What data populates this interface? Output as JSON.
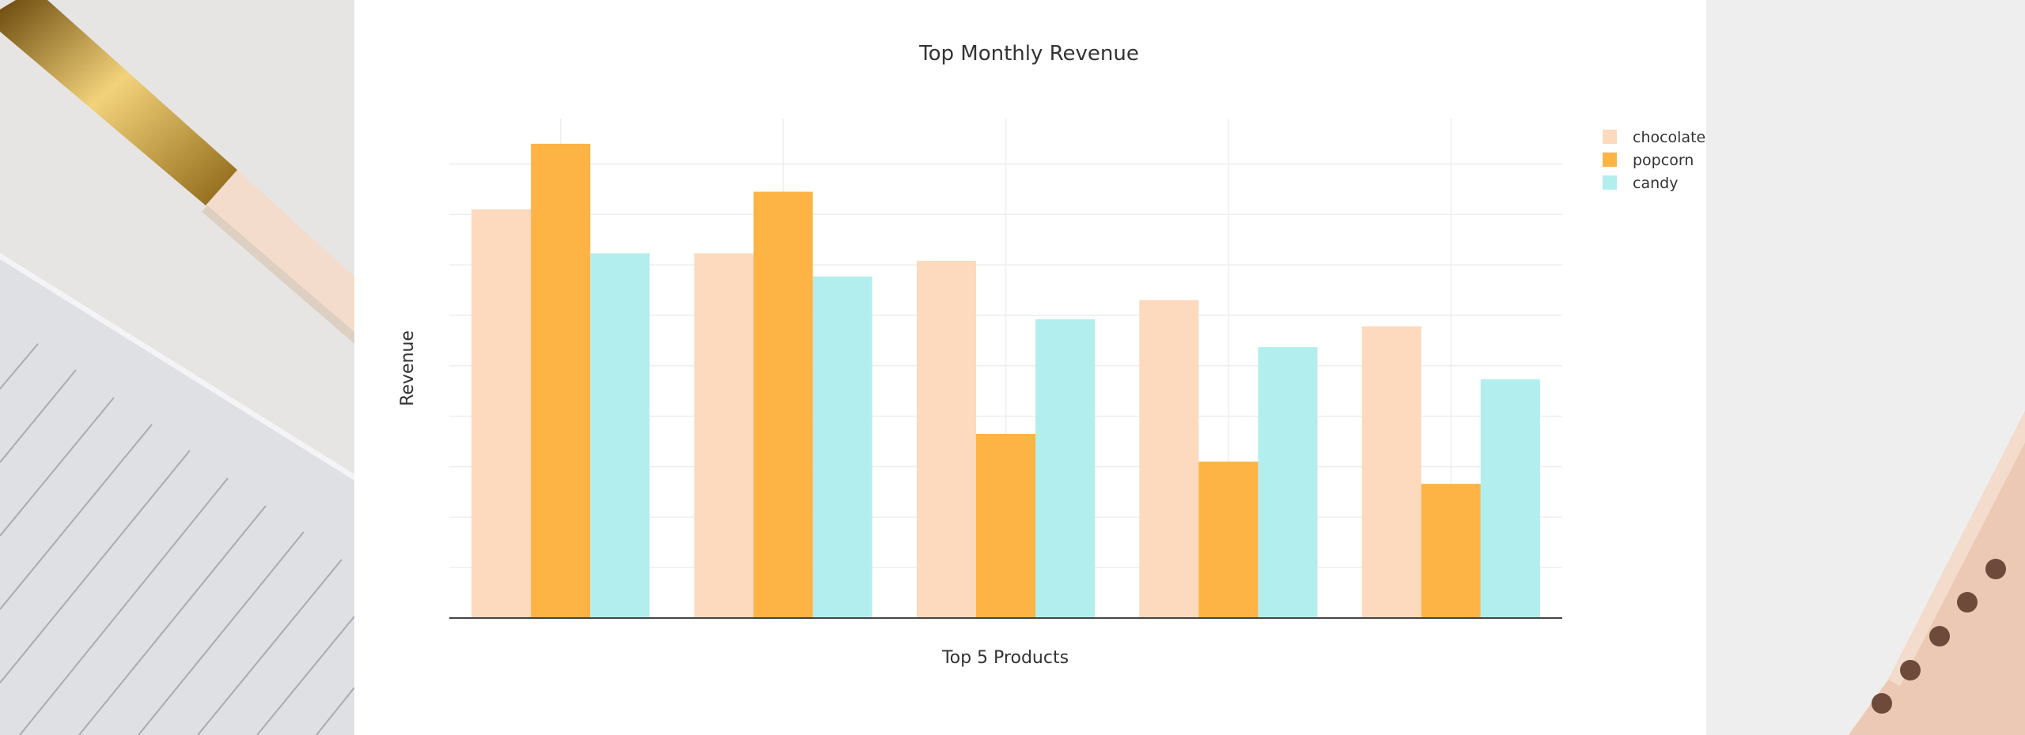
{
  "chart_data": {
    "type": "bar",
    "title": "Top Monthly Revenue",
    "xlabel": "Top 5 Products",
    "ylabel": "Revenue",
    "categories": [
      "",
      "",
      "",
      "",
      ""
    ],
    "series": [
      {
        "name": "chocolate",
        "color": "#fdd9bd",
        "values": [
          81,
          72.3,
          70.8,
          63,
          57.8
        ]
      },
      {
        "name": "popcorn",
        "color": "#feb345",
        "values": [
          94,
          84.5,
          36.5,
          31,
          26.6
        ]
      },
      {
        "name": "candy",
        "color": "#b2eeee",
        "values": [
          72.3,
          67.7,
          59.2,
          53.7,
          47.3
        ]
      }
    ],
    "ylim": [
      0,
      99
    ],
    "ytick_step": 10,
    "grid": true,
    "tick_labels_visible": false,
    "legend_position": "top-right"
  }
}
